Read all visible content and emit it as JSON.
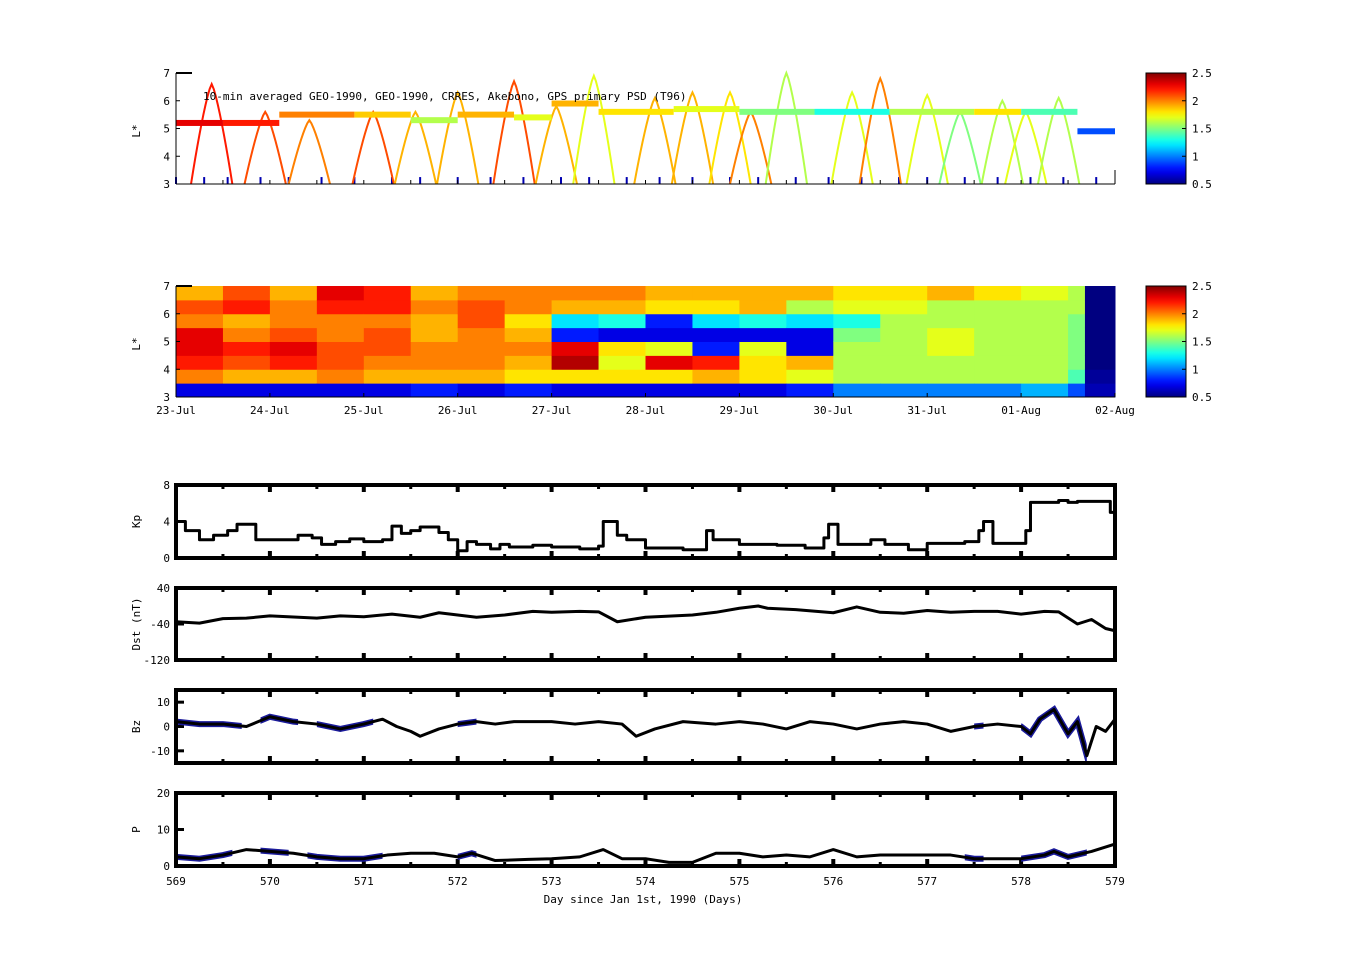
{
  "chart_data": [
    {
      "id": "psd_scatter",
      "type": "scatter",
      "title": "10-min averaged GEO-1990, GEO-1990, CRRES, Akebono, GPS  primary PSD (T96)",
      "ylabel": "L*",
      "ylim": [
        3,
        7
      ],
      "yticks": [
        "3",
        "4",
        "5",
        "6",
        "7"
      ],
      "xlim": [
        569,
        579
      ],
      "colorbar": {
        "clim": [
          0.5,
          2.5
        ],
        "ticks": [
          "0.5",
          "1",
          "1.5",
          "2",
          "2.5"
        ]
      },
      "orbit_arcs": [
        [
          569.38,
          6.6,
          2.2
        ],
        [
          569.95,
          5.6,
          2.1
        ],
        [
          570.42,
          5.3,
          2.0
        ],
        [
          571.1,
          5.6,
          2.1
        ],
        [
          571.55,
          5.6,
          1.9
        ],
        [
          572.0,
          6.3,
          1.9
        ],
        [
          572.6,
          6.7,
          2.1
        ],
        [
          573.05,
          5.8,
          1.9
        ],
        [
          573.45,
          6.9,
          1.7
        ],
        [
          574.1,
          6.1,
          1.9
        ],
        [
          574.5,
          6.3,
          1.9
        ],
        [
          574.9,
          6.3,
          1.8
        ],
        [
          575.12,
          5.6,
          2.0
        ],
        [
          575.5,
          7.0,
          1.6
        ],
        [
          576.2,
          6.3,
          1.7
        ],
        [
          576.5,
          6.8,
          2.0
        ],
        [
          577.0,
          6.2,
          1.7
        ],
        [
          577.35,
          5.6,
          1.5
        ],
        [
          577.8,
          6.0,
          1.6
        ],
        [
          578.05,
          5.6,
          1.7
        ],
        [
          578.4,
          6.1,
          1.6
        ]
      ],
      "geo_segments": [
        [
          569.0,
          569.5,
          5.2,
          2.3
        ],
        [
          569.5,
          570.1,
          5.2,
          2.2
        ],
        [
          570.1,
          570.9,
          5.5,
          2.0
        ],
        [
          570.9,
          571.5,
          5.5,
          1.85
        ],
        [
          571.5,
          572.0,
          5.3,
          1.6
        ],
        [
          572.0,
          572.6,
          5.5,
          1.9
        ],
        [
          572.6,
          573.0,
          5.4,
          1.7
        ],
        [
          573.0,
          573.5,
          5.9,
          1.9
        ],
        [
          573.5,
          574.3,
          5.6,
          1.8
        ],
        [
          574.3,
          575.0,
          5.7,
          1.7
        ],
        [
          575.0,
          575.8,
          5.6,
          1.5
        ],
        [
          575.8,
          576.6,
          5.6,
          1.3
        ],
        [
          576.6,
          577.5,
          5.6,
          1.6
        ],
        [
          577.5,
          578.0,
          5.6,
          1.8
        ],
        [
          578.0,
          578.6,
          5.6,
          1.4
        ],
        [
          578.6,
          579.0,
          4.9,
          0.9
        ]
      ],
      "low_L_samples": [
        569.0,
        569.3,
        569.55,
        569.9,
        570.2,
        570.55,
        570.9,
        571.3,
        571.6,
        572.0,
        572.35,
        572.7,
        573.1,
        573.4,
        573.8,
        574.15,
        574.5,
        574.9,
        575.2,
        575.6,
        575.95,
        576.3,
        576.7,
        577.0,
        577.4,
        577.75,
        578.1,
        578.45,
        578.8
      ]
    },
    {
      "id": "psd_map",
      "type": "heatmap",
      "ylabel": "L*",
      "ylim": [
        3,
        7
      ],
      "yticks": [
        "3",
        "4",
        "5",
        "6",
        "7"
      ],
      "xticks": [
        "23-Jul",
        "24-Jul",
        "25-Jul",
        "26-Jul",
        "27-Jul",
        "28-Jul",
        "29-Jul",
        "30-Jul",
        "31-Jul",
        "01-Aug",
        "02-Aug"
      ],
      "colorbar": {
        "clim": [
          0.5,
          2.5
        ],
        "ticks": [
          "0.5",
          "1",
          "1.5",
          "2",
          "2.5"
        ]
      },
      "x_edges": [
        569,
        569.5,
        570,
        570.5,
        571,
        571.5,
        572,
        572.5,
        573,
        573.5,
        574,
        574.5,
        575,
        575.5,
        576,
        576.5,
        577,
        577.5,
        578,
        578.5,
        578.68,
        579
      ],
      "L_edges": [
        3,
        3.5,
        4,
        4.5,
        5,
        5.5,
        6,
        6.5,
        7
      ],
      "values": [
        [
          0.7,
          2.0,
          2.2,
          2.3,
          2.3,
          2.0,
          2.1,
          1.9
        ],
        [
          0.7,
          1.9,
          2.1,
          2.2,
          2.0,
          1.9,
          2.2,
          2.1
        ],
        [
          0.7,
          1.9,
          2.2,
          2.3,
          2.1,
          2.0,
          2.0,
          1.9
        ],
        [
          0.7,
          2.0,
          2.1,
          2.1,
          2.0,
          2.0,
          2.2,
          2.3
        ],
        [
          0.7,
          1.9,
          2.0,
          2.1,
          2.1,
          2.0,
          2.2,
          2.2
        ],
        [
          0.8,
          1.9,
          2.0,
          2.0,
          1.9,
          1.9,
          2.0,
          1.9
        ],
        [
          0.7,
          1.9,
          2.0,
          2.0,
          2.0,
          2.1,
          2.1,
          2.0
        ],
        [
          0.8,
          1.8,
          1.9,
          2.0,
          1.9,
          1.8,
          2.0,
          2.0
        ],
        [
          0.7,
          1.8,
          2.4,
          2.3,
          0.8,
          1.2,
          1.9,
          2.0
        ],
        [
          0.7,
          1.8,
          1.7,
          1.8,
          0.7,
          1.3,
          1.9,
          2.0
        ],
        [
          0.7,
          1.8,
          2.3,
          1.7,
          0.7,
          0.8,
          1.8,
          1.9
        ],
        [
          0.7,
          1.9,
          2.2,
          0.8,
          0.7,
          1.2,
          1.8,
          1.9
        ],
        [
          0.7,
          1.8,
          1.8,
          1.7,
          0.7,
          1.3,
          1.9,
          1.9
        ],
        [
          0.8,
          1.7,
          1.9,
          0.7,
          0.7,
          1.2,
          1.6,
          1.9
        ],
        [
          1.0,
          1.6,
          1.6,
          1.6,
          1.5,
          1.3,
          1.7,
          1.8
        ],
        [
          1.0,
          1.6,
          1.6,
          1.6,
          1.6,
          1.6,
          1.7,
          1.8
        ],
        [
          1.0,
          1.6,
          1.6,
          1.7,
          1.7,
          1.6,
          1.6,
          1.9
        ],
        [
          1.0,
          1.6,
          1.6,
          1.6,
          1.6,
          1.6,
          1.6,
          1.8
        ],
        [
          1.1,
          1.6,
          1.6,
          1.6,
          1.6,
          1.6,
          1.6,
          1.7
        ],
        [
          0.9,
          1.4,
          1.5,
          1.5,
          1.5,
          1.5,
          1.6,
          1.6
        ],
        [
          0.6,
          0.55,
          0.5,
          0.5,
          0.5,
          0.5,
          0.5,
          0.5
        ]
      ]
    },
    {
      "id": "kp",
      "type": "line",
      "ylabel": "Kp",
      "ylim": [
        0,
        8
      ],
      "yticks": [
        "0",
        "4",
        "8"
      ],
      "step": true,
      "points": [
        [
          569.0,
          4
        ],
        [
          569.1,
          3
        ],
        [
          569.25,
          2
        ],
        [
          569.4,
          2.5
        ],
        [
          569.55,
          3
        ],
        [
          569.65,
          3.7
        ],
        [
          569.85,
          2
        ],
        [
          570.3,
          2.5
        ],
        [
          570.45,
          2.2
        ],
        [
          570.55,
          1.5
        ],
        [
          570.7,
          1.8
        ],
        [
          570.85,
          2.1
        ],
        [
          571.0,
          1.8
        ],
        [
          571.2,
          2
        ],
        [
          571.3,
          3.5
        ],
        [
          571.4,
          2.7
        ],
        [
          571.5,
          3
        ],
        [
          571.6,
          3.4
        ],
        [
          571.8,
          2.8
        ],
        [
          571.9,
          2
        ],
        [
          572.0,
          0.8
        ],
        [
          572.1,
          1.8
        ],
        [
          572.2,
          1.5
        ],
        [
          572.35,
          1
        ],
        [
          572.45,
          1.5
        ],
        [
          572.55,
          1.2
        ],
        [
          572.8,
          1.4
        ],
        [
          573.0,
          1.2
        ],
        [
          573.3,
          1.0
        ],
        [
          573.5,
          1.3
        ],
        [
          573.55,
          4
        ],
        [
          573.7,
          2.5
        ],
        [
          573.8,
          2
        ],
        [
          574.0,
          1.1
        ],
        [
          574.4,
          0.9
        ],
        [
          574.65,
          3
        ],
        [
          574.72,
          2
        ],
        [
          575.0,
          1.5
        ],
        [
          575.4,
          1.4
        ],
        [
          575.7,
          1.1
        ],
        [
          575.9,
          2.2
        ],
        [
          575.95,
          3.7
        ],
        [
          576.05,
          1.5
        ],
        [
          576.4,
          2
        ],
        [
          576.55,
          1.5
        ],
        [
          576.8,
          0.9
        ],
        [
          577.0,
          1.6
        ],
        [
          577.4,
          1.8
        ],
        [
          577.55,
          3
        ],
        [
          577.6,
          4
        ],
        [
          577.7,
          1.6
        ],
        [
          578.05,
          3
        ],
        [
          578.1,
          6.1
        ],
        [
          578.4,
          6.3
        ],
        [
          578.5,
          6.1
        ],
        [
          578.6,
          6.2
        ],
        [
          578.95,
          5
        ]
      ]
    },
    {
      "id": "dst",
      "type": "line",
      "ylabel": "Dst (nT)",
      "ylim": [
        -120,
        40
      ],
      "yticks": [
        "-120",
        "-40",
        "40"
      ],
      "points": [
        [
          569,
          -35
        ],
        [
          569.25,
          -38
        ],
        [
          569.5,
          -28
        ],
        [
          569.75,
          -27
        ],
        [
          570,
          -22
        ],
        [
          570.5,
          -27
        ],
        [
          570.75,
          -22
        ],
        [
          571,
          -24
        ],
        [
          571.3,
          -18
        ],
        [
          571.6,
          -25
        ],
        [
          571.8,
          -15
        ],
        [
          572.2,
          -25
        ],
        [
          572.5,
          -20
        ],
        [
          572.8,
          -12
        ],
        [
          573,
          -14
        ],
        [
          573.3,
          -12
        ],
        [
          573.5,
          -13
        ],
        [
          573.7,
          -35
        ],
        [
          574,
          -25
        ],
        [
          574.5,
          -20
        ],
        [
          574.75,
          -14
        ],
        [
          575,
          -5
        ],
        [
          575.2,
          0
        ],
        [
          575.3,
          -5
        ],
        [
          575.6,
          -8
        ],
        [
          576,
          -15
        ],
        [
          576.25,
          -2
        ],
        [
          576.5,
          -14
        ],
        [
          576.75,
          -16
        ],
        [
          577,
          -10
        ],
        [
          577.25,
          -14
        ],
        [
          577.5,
          -12
        ],
        [
          577.75,
          -12
        ],
        [
          578,
          -18
        ],
        [
          578.25,
          -12
        ],
        [
          578.4,
          -13
        ],
        [
          578.6,
          -40
        ],
        [
          578.75,
          -30
        ],
        [
          578.9,
          -50
        ],
        [
          579,
          -55
        ]
      ]
    },
    {
      "id": "bz",
      "type": "line",
      "ylabel": "Bz",
      "ylim": [
        -15,
        15
      ],
      "yticks": [
        "-10",
        "0",
        "10"
      ],
      "points": [
        [
          569,
          2
        ],
        [
          569.25,
          1
        ],
        [
          569.5,
          1
        ],
        [
          569.75,
          0
        ],
        [
          570,
          4
        ],
        [
          570.25,
          2
        ],
        [
          570.5,
          1
        ],
        [
          570.75,
          -1
        ],
        [
          571,
          1
        ],
        [
          571.2,
          3
        ],
        [
          571.35,
          0
        ],
        [
          571.5,
          -2
        ],
        [
          571.6,
          -4
        ],
        [
          571.8,
          -1
        ],
        [
          572,
          1
        ],
        [
          572.2,
          2
        ],
        [
          572.4,
          1
        ],
        [
          572.6,
          2
        ],
        [
          573,
          2
        ],
        [
          573.25,
          1
        ],
        [
          573.5,
          2
        ],
        [
          573.75,
          1
        ],
        [
          573.9,
          -4
        ],
        [
          574.1,
          -1
        ],
        [
          574.4,
          2
        ],
        [
          574.75,
          1
        ],
        [
          575,
          2
        ],
        [
          575.25,
          1
        ],
        [
          575.5,
          -1
        ],
        [
          575.75,
          2
        ],
        [
          576,
          1
        ],
        [
          576.25,
          -1
        ],
        [
          576.5,
          1
        ],
        [
          576.75,
          2
        ],
        [
          577,
          1
        ],
        [
          577.25,
          -2
        ],
        [
          577.5,
          0
        ],
        [
          577.75,
          1
        ],
        [
          578,
          0
        ],
        [
          578.1,
          -3
        ],
        [
          578.2,
          3
        ],
        [
          578.35,
          7
        ],
        [
          578.5,
          -3
        ],
        [
          578.6,
          2
        ],
        [
          578.7,
          -12
        ],
        [
          578.8,
          0
        ],
        [
          578.9,
          -2
        ],
        [
          579,
          3
        ]
      ],
      "highres_ranges": [
        [
          569.0,
          569.7
        ],
        [
          569.9,
          570.3
        ],
        [
          570.5,
          571.1
        ],
        [
          572.0,
          572.2
        ],
        [
          577.5,
          577.6
        ],
        [
          578.0,
          578.7
        ]
      ]
    },
    {
      "id": "p",
      "type": "line",
      "ylabel": "P",
      "ylim": [
        0,
        20
      ],
      "yticks": [
        "0",
        "10",
        "20"
      ],
      "xlabel": "Day since Jan 1st, 1990 (Days)",
      "xticks": [
        "569",
        "570",
        "571",
        "572",
        "573",
        "574",
        "575",
        "576",
        "577",
        "578",
        "579"
      ],
      "points": [
        [
          569,
          2.5
        ],
        [
          569.25,
          2
        ],
        [
          569.5,
          3
        ],
        [
          569.75,
          4.5
        ],
        [
          570,
          4
        ],
        [
          570.25,
          3.5
        ],
        [
          570.5,
          2.5
        ],
        [
          570.75,
          2
        ],
        [
          571,
          2
        ],
        [
          571.25,
          3
        ],
        [
          571.5,
          3.5
        ],
        [
          571.75,
          3.5
        ],
        [
          572,
          2.5
        ],
        [
          572.15,
          3.5
        ],
        [
          572.4,
          1.5
        ],
        [
          572.75,
          1.8
        ],
        [
          573,
          2
        ],
        [
          573.3,
          2.5
        ],
        [
          573.55,
          4.5
        ],
        [
          573.75,
          2
        ],
        [
          574,
          2
        ],
        [
          574.25,
          1
        ],
        [
          574.5,
          1
        ],
        [
          574.75,
          3.5
        ],
        [
          575,
          3.5
        ],
        [
          575.25,
          2.5
        ],
        [
          575.5,
          3
        ],
        [
          575.75,
          2.5
        ],
        [
          576,
          4.5
        ],
        [
          576.25,
          2.5
        ],
        [
          576.5,
          3
        ],
        [
          576.75,
          3
        ],
        [
          577,
          3
        ],
        [
          577.25,
          3
        ],
        [
          577.5,
          2
        ],
        [
          577.75,
          2
        ],
        [
          578,
          2
        ],
        [
          578.25,
          3
        ],
        [
          578.35,
          4
        ],
        [
          578.5,
          2.5
        ],
        [
          578.75,
          4
        ],
        [
          579,
          6
        ]
      ],
      "highres_ranges": [
        [
          569.0,
          569.6
        ],
        [
          569.9,
          570.2
        ],
        [
          570.4,
          571.2
        ],
        [
          572.0,
          572.2
        ],
        [
          577.4,
          577.6
        ],
        [
          578.0,
          578.7
        ]
      ]
    }
  ]
}
